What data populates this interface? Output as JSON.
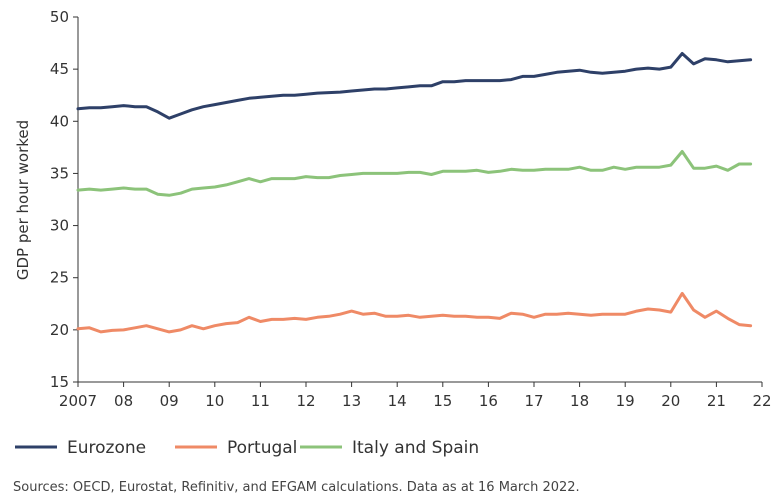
{
  "chart_data": {
    "type": "line",
    "ylabel": "GDP per hour worked",
    "xlabel": "",
    "ylim": [
      15,
      50
    ],
    "yticks": [
      15,
      20,
      25,
      30,
      35,
      40,
      45,
      50
    ],
    "xlim": [
      2007,
      2022
    ],
    "xticks": [
      {
        "value": 2007,
        "label": "2007"
      },
      {
        "value": 2008,
        "label": "08"
      },
      {
        "value": 2009,
        "label": "09"
      },
      {
        "value": 2010,
        "label": "10"
      },
      {
        "value": 2011,
        "label": "11"
      },
      {
        "value": 2012,
        "label": "12"
      },
      {
        "value": 2013,
        "label": "13"
      },
      {
        "value": 2014,
        "label": "14"
      },
      {
        "value": 2015,
        "label": "15"
      },
      {
        "value": 2016,
        "label": "16"
      },
      {
        "value": 2017,
        "label": "17"
      },
      {
        "value": 2018,
        "label": "18"
      },
      {
        "value": 2019,
        "label": "19"
      },
      {
        "value": 2020,
        "label": "20"
      },
      {
        "value": 2021,
        "label": "21"
      },
      {
        "value": 2022,
        "label": "22"
      }
    ],
    "grid": false,
    "legend_position": "bottom",
    "x": [
      2007.0,
      2007.25,
      2007.5,
      2007.75,
      2008.0,
      2008.25,
      2008.5,
      2008.75,
      2009.0,
      2009.25,
      2009.5,
      2009.75,
      2010.0,
      2010.25,
      2010.5,
      2010.75,
      2011.0,
      2011.25,
      2011.5,
      2011.75,
      2012.0,
      2012.25,
      2012.5,
      2012.75,
      2013.0,
      2013.25,
      2013.5,
      2013.75,
      2014.0,
      2014.25,
      2014.5,
      2014.75,
      2015.0,
      2015.25,
      2015.5,
      2015.75,
      2016.0,
      2016.25,
      2016.5,
      2016.75,
      2017.0,
      2017.25,
      2017.5,
      2017.75,
      2018.0,
      2018.25,
      2018.5,
      2018.75,
      2019.0,
      2019.25,
      2019.5,
      2019.75,
      2020.0,
      2020.25,
      2020.5,
      2020.75,
      2021.0,
      2021.25,
      2021.5,
      2021.75
    ],
    "series": [
      {
        "name": "Eurozone",
        "color": "#2e4068",
        "values": [
          41.2,
          41.3,
          41.3,
          41.4,
          41.5,
          41.4,
          41.4,
          40.9,
          40.3,
          40.7,
          41.1,
          41.4,
          41.6,
          41.8,
          42.0,
          42.2,
          42.3,
          42.4,
          42.5,
          42.5,
          42.6,
          42.7,
          42.75,
          42.8,
          42.9,
          43.0,
          43.1,
          43.1,
          43.2,
          43.3,
          43.4,
          43.4,
          43.8,
          43.8,
          43.9,
          43.9,
          43.9,
          43.9,
          44.0,
          44.3,
          44.3,
          44.5,
          44.7,
          44.8,
          44.9,
          44.7,
          44.6,
          44.7,
          44.8,
          45.0,
          45.1,
          45.0,
          45.2,
          46.5,
          45.5,
          46.0,
          45.9,
          45.7,
          45.8,
          45.9
        ]
      },
      {
        "name": "Portugal",
        "color": "#ef8a66",
        "values": [
          20.1,
          20.2,
          19.8,
          19.95,
          20.0,
          20.2,
          20.4,
          20.1,
          19.8,
          20.0,
          20.4,
          20.1,
          20.4,
          20.6,
          20.7,
          21.2,
          20.8,
          21.0,
          21.0,
          21.1,
          21.0,
          21.2,
          21.3,
          21.5,
          21.8,
          21.5,
          21.6,
          21.3,
          21.3,
          21.4,
          21.2,
          21.3,
          21.4,
          21.3,
          21.3,
          21.2,
          21.2,
          21.1,
          21.6,
          21.5,
          21.2,
          21.5,
          21.5,
          21.6,
          21.5,
          21.4,
          21.5,
          21.5,
          21.5,
          21.8,
          22.0,
          21.9,
          21.7,
          23.5,
          21.9,
          21.2,
          21.8,
          21.1,
          20.5,
          20.4
        ]
      },
      {
        "name": "Italy and Spain",
        "color": "#8cc37a",
        "values": [
          33.4,
          33.5,
          33.4,
          33.5,
          33.6,
          33.5,
          33.5,
          33.0,
          32.9,
          33.1,
          33.5,
          33.6,
          33.7,
          33.9,
          34.2,
          34.5,
          34.2,
          34.5,
          34.5,
          34.5,
          34.7,
          34.6,
          34.6,
          34.8,
          34.9,
          35.0,
          35.0,
          35.0,
          35.0,
          35.1,
          35.1,
          34.9,
          35.2,
          35.2,
          35.2,
          35.3,
          35.1,
          35.2,
          35.4,
          35.3,
          35.3,
          35.4,
          35.4,
          35.4,
          35.6,
          35.3,
          35.3,
          35.6,
          35.4,
          35.6,
          35.6,
          35.6,
          35.8,
          37.1,
          35.5,
          35.5,
          35.7,
          35.3,
          35.9,
          35.9
        ]
      }
    ]
  },
  "source_note": "Sources: OECD, Eurostat, Refinitiv, and EFGAM calculations. Data as at 16 March 2022."
}
